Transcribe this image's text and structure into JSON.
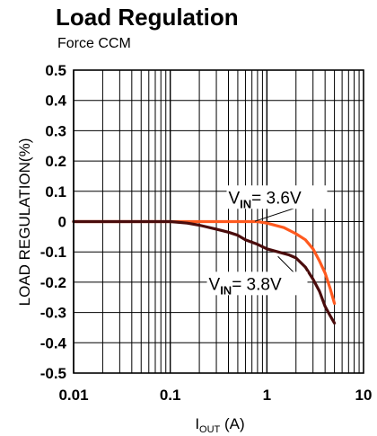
{
  "chart_data": {
    "type": "line",
    "title": "Load Regulation",
    "subtitle": "Force CCM",
    "ylabel": "LOAD REGULATION(%)",
    "xlabel": {
      "main": "I",
      "sub": "OUT",
      "unit": " (A)"
    },
    "x_scale": "log",
    "xlim": [
      0.01,
      10
    ],
    "ylim": [
      -0.5,
      0.5
    ],
    "x_ticks": [
      {
        "value": 0.01,
        "label": "0.01"
      },
      {
        "value": 0.1,
        "label": "0.1"
      },
      {
        "value": 1,
        "label": "1"
      },
      {
        "value": 10,
        "label": "10"
      }
    ],
    "y_ticks": [
      {
        "value": 0.5,
        "label": "0.5"
      },
      {
        "value": 0.4,
        "label": "0.4"
      },
      {
        "value": 0.3,
        "label": "0.3"
      },
      {
        "value": 0.2,
        "label": "0.2"
      },
      {
        "value": 0.1,
        "label": "0.1"
      },
      {
        "value": 0,
        "label": "0"
      },
      {
        "value": -0.1,
        "label": "-0.1"
      },
      {
        "value": -0.2,
        "label": "-0.2"
      },
      {
        "value": -0.3,
        "label": "-0.3"
      },
      {
        "value": -0.4,
        "label": "-0.4"
      },
      {
        "value": -0.5,
        "label": "-0.5"
      }
    ],
    "grid": true,
    "series": [
      {
        "label_main": "V",
        "label_sub": "IN",
        "label_rest": "= 3.6V",
        "color": "#ff5a1f",
        "label_pos": {
          "x": 0.4,
          "y": 0.06
        },
        "leader_to": {
          "x": 0.75,
          "y": 0.001
        },
        "x": [
          0.01,
          0.05,
          0.1,
          0.2,
          0.5,
          0.8,
          1.0,
          1.5,
          2.0,
          2.5,
          3.0,
          3.5,
          4.0,
          4.5,
          5.0
        ],
        "y": [
          0,
          0,
          0,
          0,
          0,
          0,
          -0.005,
          -0.02,
          -0.04,
          -0.06,
          -0.09,
          -0.13,
          -0.17,
          -0.22,
          -0.27
        ]
      },
      {
        "label_main": "V",
        "label_sub": "IN",
        "label_rest": "= 3.8V",
        "color": "#4a0c0c",
        "label_pos": {
          "x": 0.25,
          "y": -0.225
        },
        "leader_to": {
          "x": 1.3,
          "y": -0.115
        },
        "x": [
          0.01,
          0.05,
          0.1,
          0.15,
          0.2,
          0.3,
          0.4,
          0.5,
          0.6,
          0.8,
          1.0,
          1.3,
          1.7,
          2.0,
          2.5,
          3.0,
          3.5,
          4.0,
          4.5,
          5.0
        ],
        "y": [
          0,
          0,
          0,
          -0.005,
          -0.012,
          -0.025,
          -0.035,
          -0.045,
          -0.06,
          -0.075,
          -0.09,
          -0.1,
          -0.11,
          -0.12,
          -0.15,
          -0.19,
          -0.23,
          -0.28,
          -0.31,
          -0.335
        ]
      }
    ]
  }
}
